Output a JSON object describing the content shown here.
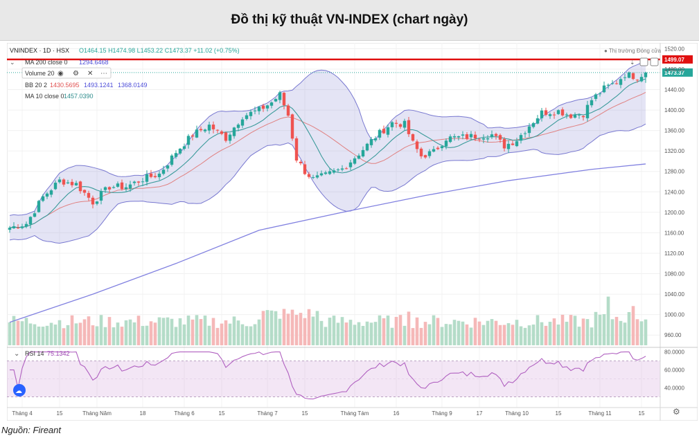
{
  "page": {
    "title": "Đồ thị kỹ thuật VN-INDEX (chart ngày)",
    "source": "Nguồn: Fireant"
  },
  "colors": {
    "up": "#26a69a",
    "down": "#ef5350",
    "vol_up": "#b4dcc8",
    "vol_down": "#f5b8b8",
    "ma200": "#8080e0",
    "ma10": "#3a9a9a",
    "bb_mid": "#e08080",
    "bb_band": "#7878d0",
    "bb_fill": "rgba(130,130,210,0.22)",
    "rsi": "#b060c0",
    "rsi_fill": "rgba(200,140,210,0.22)",
    "resistance": "#e01010"
  },
  "chart_data": {
    "type": "candlestick",
    "symbol_info": {
      "name": "VNINDEX",
      "interval": "1D",
      "exchange": "HSX",
      "o": "O1464.15",
      "h": "H1474.98",
      "l": "L1453.22",
      "c": "C1473.37",
      "chg": "+11.02 (+0.75%)"
    },
    "market_status": "Thị trường Đóng cửa",
    "legend": [
      {
        "name": "MA 200 close 0",
        "values": [
          "1294.6468"
        ]
      },
      {
        "name": "Volume 20",
        "values": []
      },
      {
        "name": "BB 20 2",
        "values": [
          "1430.5695",
          "1493.1241",
          "1368.0149"
        ]
      },
      {
        "name": "MA 10 close 0",
        "values": [
          "1457.0390"
        ]
      }
    ],
    "y_axis": {
      "ticks": [
        "1520.00",
        "1480.00",
        "1440.00",
        "1400.00",
        "1360.00",
        "1320.00",
        "1280.00",
        "1240.00",
        "1200.00",
        "1160.00",
        "1120.00",
        "1080.00",
        "1040.00",
        "1000.00",
        "960.00"
      ],
      "range": [
        940,
        1530
      ]
    },
    "price_labels": [
      {
        "label": "1499.07",
        "value": 1499.07,
        "role": "resistance"
      },
      {
        "label": "1473.37",
        "value": 1473.37,
        "role": "last"
      }
    ],
    "x_axis": {
      "ticks": [
        {
          "label": "Tháng 4",
          "idx": 3
        },
        {
          "label": "15",
          "idx": 12
        },
        {
          "label": "Tháng Năm",
          "idx": 21
        },
        {
          "label": "18",
          "idx": 32
        },
        {
          "label": "Tháng 6",
          "idx": 42
        },
        {
          "label": "15",
          "idx": 51
        },
        {
          "label": "Tháng 7",
          "idx": 62
        },
        {
          "label": "15",
          "idx": 71
        },
        {
          "label": "Tháng Tám",
          "idx": 83
        },
        {
          "label": "16",
          "idx": 93
        },
        {
          "label": "Tháng 9",
          "idx": 104
        },
        {
          "label": "17",
          "idx": 113
        },
        {
          "label": "Tháng 10",
          "idx": 122
        },
        {
          "label": "15",
          "idx": 132
        },
        {
          "label": "Tháng 11",
          "idx": 142
        },
        {
          "label": "15",
          "idx": 152
        }
      ]
    },
    "anchors": [
      [
        0,
        1170
      ],
      [
        4,
        1178
      ],
      [
        8,
        1230
      ],
      [
        12,
        1262
      ],
      [
        16,
        1255
      ],
      [
        20,
        1220
      ],
      [
        24,
        1250
      ],
      [
        28,
        1250
      ],
      [
        32,
        1265
      ],
      [
        36,
        1275
      ],
      [
        40,
        1318
      ],
      [
        44,
        1352
      ],
      [
        48,
        1370
      ],
      [
        52,
        1345
      ],
      [
        56,
        1388
      ],
      [
        60,
        1400
      ],
      [
        63,
        1415
      ],
      [
        65,
        1430
      ],
      [
        67,
        1390
      ],
      [
        69,
        1305
      ],
      [
        71,
        1280
      ],
      [
        73,
        1265
      ],
      [
        76,
        1272
      ],
      [
        80,
        1285
      ],
      [
        84,
        1315
      ],
      [
        88,
        1348
      ],
      [
        92,
        1375
      ],
      [
        95,
        1372
      ],
      [
        97,
        1335
      ],
      [
        99,
        1310
      ],
      [
        102,
        1318
      ],
      [
        105,
        1345
      ],
      [
        109,
        1347
      ],
      [
        113,
        1350
      ],
      [
        116,
        1352
      ],
      [
        119,
        1330
      ],
      [
        122,
        1342
      ],
      [
        125,
        1370
      ],
      [
        128,
        1395
      ],
      [
        132,
        1398
      ],
      [
        135,
        1390
      ],
      [
        138,
        1393
      ],
      [
        140,
        1420
      ],
      [
        143,
        1442
      ],
      [
        146,
        1455
      ],
      [
        148,
        1470
      ],
      [
        151,
        1465
      ],
      [
        153,
        1473.37
      ]
    ],
    "ma200_points": [
      [
        0,
        985
      ],
      [
        20,
        1040
      ],
      [
        40,
        1100
      ],
      [
        60,
        1165
      ],
      [
        80,
        1200
      ],
      [
        100,
        1233
      ],
      [
        120,
        1262
      ],
      [
        140,
        1284
      ],
      [
        153,
        1294.6468
      ]
    ],
    "rsi": {
      "label": "RSI 14",
      "value": "75.1342",
      "ticks": [
        "80.0000",
        "60.0000",
        "40.0000"
      ],
      "upper": 70,
      "lower": 30,
      "range": [
        18,
        82
      ]
    },
    "volume": {
      "count": 154,
      "range": [
        0,
        130
      ]
    }
  }
}
